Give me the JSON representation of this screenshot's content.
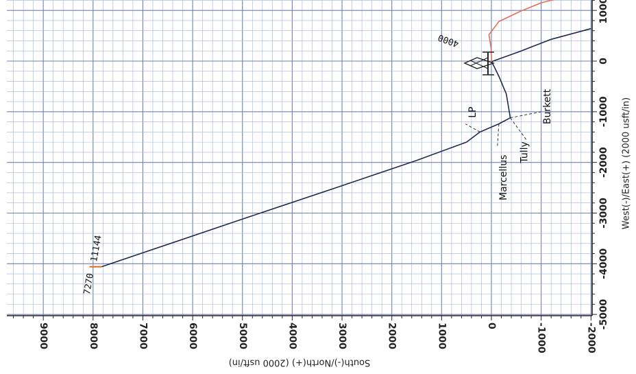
{
  "chart_data": {
    "type": "line",
    "xlabel": "South(-)/North(+) (2000 usft/in)",
    "ylabel": "West(-)/East(+) (2000 usft/in)",
    "xlim": [
      10000,
      -2000
    ],
    "ylim": [
      -5000,
      1000
    ],
    "grid": true,
    "x_ticks": [
      "9000",
      "8000",
      "7000",
      "6000",
      "5000",
      "4000",
      "3000",
      "2000",
      "1000",
      "0",
      "-1000",
      "-2000"
    ],
    "y_ticks": [
      "1000",
      "0",
      "-1000",
      "-2000",
      "-3000",
      "-4000",
      "-5000"
    ],
    "series": [
      {
        "color": "#1e2a4a",
        "points": [
          [
            7830,
            -4060
          ],
          [
            5000,
            -3120
          ],
          [
            3000,
            -2460
          ],
          [
            1500,
            -1960
          ],
          [
            500,
            -1600
          ],
          [
            230,
            -1400
          ],
          [
            -150,
            -1240
          ],
          [
            -380,
            -1120
          ],
          [
            -300,
            -650
          ],
          [
            -150,
            -300
          ],
          [
            -5,
            -10
          ]
        ]
      },
      {
        "color": "#1e2a4a",
        "points": [
          [
            -5,
            -10
          ],
          [
            -600,
            200
          ],
          [
            -1200,
            430
          ],
          [
            -2000,
            640
          ]
        ]
      },
      {
        "color": "#e2705a",
        "points": [
          [
            -5,
            -10
          ],
          [
            5,
            250
          ],
          [
            50,
            520
          ],
          [
            -150,
            780
          ],
          [
            -600,
            990
          ],
          [
            -1000,
            1150
          ],
          [
            -1450,
            1260
          ]
        ]
      },
      {
        "color": "#e07020",
        "points": [
          [
            7830,
            -4060
          ],
          [
            8070,
            -4060
          ]
        ]
      }
    ],
    "annotations": [
      {
        "text": "LP",
        "x": 370,
        "y": -1010
      },
      {
        "text": "Marcellus",
        "x": -250,
        "y": -2300
      },
      {
        "text": "Tully",
        "x": -670,
        "y": -1800
      },
      {
        "text": "Burkett",
        "x": -1130,
        "y": -900
      },
      {
        "text": "4000",
        "x": 860,
        "y": 410
      },
      {
        "text": "7270",
        "x": 8080,
        "y": -4400
      },
      {
        "text": "11144",
        "x": 7930,
        "y": -3700
      }
    ]
  }
}
